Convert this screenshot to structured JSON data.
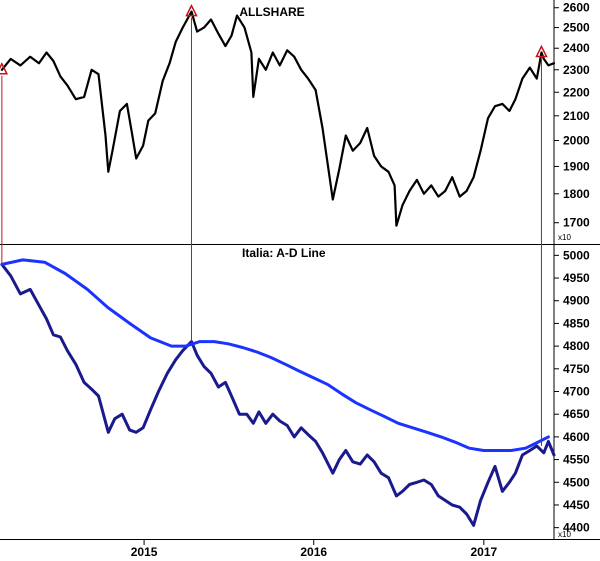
{
  "chart_data": [
    {
      "type": "line",
      "title": "ALLSHARE",
      "unit_label": "x10",
      "ylim": [
        1630,
        2640
      ],
      "yticks": [
        1700,
        1800,
        1900,
        2000,
        2100,
        2200,
        2300,
        2400,
        2500,
        2600
      ],
      "y_scale": "log",
      "series": [
        {
          "color": "#000000",
          "x": [
            "2014-03-01",
            "2014-03-20",
            "2014-04-10",
            "2014-05-01",
            "2014-05-20",
            "2014-06-05",
            "2014-06-20",
            "2014-07-05",
            "2014-07-20",
            "2014-08-07",
            "2014-08-25",
            "2014-09-10",
            "2014-09-25",
            "2014-10-10",
            "2014-10-16",
            "2014-10-25",
            "2014-11-10",
            "2014-11-25",
            "2014-12-05",
            "2014-12-15",
            "2014-12-30",
            "2015-01-10",
            "2015-01-25",
            "2015-02-10",
            "2015-02-25",
            "2015-03-10",
            "2015-03-25",
            "2015-04-13",
            "2015-04-25",
            "2015-05-10",
            "2015-05-25",
            "2015-06-10",
            "2015-06-25",
            "2015-07-08",
            "2015-07-20",
            "2015-08-05",
            "2015-08-20",
            "2015-08-24",
            "2015-09-05",
            "2015-09-20",
            "2015-10-05",
            "2015-10-20",
            "2015-11-05",
            "2015-11-20",
            "2015-12-05",
            "2015-12-20",
            "2016-01-05",
            "2016-01-20",
            "2016-02-11",
            "2016-02-25",
            "2016-03-10",
            "2016-03-25",
            "2016-04-10",
            "2016-04-25",
            "2016-05-10",
            "2016-05-25",
            "2016-06-10",
            "2016-06-23",
            "2016-06-27",
            "2016-07-10",
            "2016-07-25",
            "2016-08-10",
            "2016-08-25",
            "2016-09-10",
            "2016-09-25",
            "2016-10-10",
            "2016-10-25",
            "2016-11-10",
            "2016-11-25",
            "2016-12-10",
            "2016-12-25",
            "2017-01-10",
            "2017-01-25",
            "2017-02-10",
            "2017-02-25",
            "2017-03-10",
            "2017-03-25",
            "2017-04-10",
            "2017-04-25",
            "2017-05-05",
            "2017-05-10",
            "2017-05-20",
            "2017-06-01"
          ],
          "values": [
            2300,
            2350,
            2320,
            2360,
            2330,
            2380,
            2340,
            2270,
            2230,
            2170,
            2180,
            2300,
            2280,
            2020,
            1880,
            1960,
            2120,
            2150,
            2040,
            1930,
            1980,
            2080,
            2110,
            2250,
            2330,
            2430,
            2500,
            2580,
            2480,
            2500,
            2540,
            2470,
            2410,
            2460,
            2560,
            2500,
            2380,
            2180,
            2350,
            2300,
            2380,
            2320,
            2390,
            2360,
            2300,
            2260,
            2210,
            2050,
            1780,
            1890,
            2020,
            1960,
            1990,
            2050,
            1940,
            1900,
            1880,
            1830,
            1690,
            1760,
            1810,
            1850,
            1800,
            1830,
            1790,
            1810,
            1860,
            1790,
            1810,
            1860,
            1960,
            2090,
            2140,
            2150,
            2120,
            2170,
            2260,
            2310,
            2260,
            2380,
            2350,
            2320,
            2330
          ]
        }
      ]
    },
    {
      "type": "line",
      "title": "Italia: A-D Line",
      "unit_label": "x10",
      "ylim": [
        4375,
        5025
      ],
      "yticks": [
        4400,
        4450,
        4500,
        4550,
        4600,
        4650,
        4700,
        4750,
        4800,
        4850,
        4900,
        4950,
        5000
      ],
      "series": [
        {
          "color": "#1a1a8c",
          "x": [
            "2014-03-01",
            "2014-03-20",
            "2014-04-10",
            "2014-05-01",
            "2014-05-20",
            "2014-06-05",
            "2014-06-20",
            "2014-07-05",
            "2014-07-20",
            "2014-08-07",
            "2014-08-25",
            "2014-09-10",
            "2014-09-25",
            "2014-10-16",
            "2014-10-30",
            "2014-11-15",
            "2014-12-01",
            "2014-12-15",
            "2014-12-30",
            "2015-01-15",
            "2015-02-01",
            "2015-02-20",
            "2015-03-10",
            "2015-03-25",
            "2015-04-13",
            "2015-04-25",
            "2015-05-10",
            "2015-05-25",
            "2015-06-10",
            "2015-06-25",
            "2015-07-08",
            "2015-07-25",
            "2015-08-10",
            "2015-08-24",
            "2015-09-05",
            "2015-09-20",
            "2015-10-05",
            "2015-10-20",
            "2015-11-05",
            "2015-11-20",
            "2015-12-05",
            "2015-12-20",
            "2016-01-05",
            "2016-01-20",
            "2016-02-11",
            "2016-02-25",
            "2016-03-10",
            "2016-03-25",
            "2016-04-10",
            "2016-04-25",
            "2016-05-10",
            "2016-05-25",
            "2016-06-10",
            "2016-06-27",
            "2016-07-10",
            "2016-07-25",
            "2016-08-10",
            "2016-08-25",
            "2016-09-10",
            "2016-09-25",
            "2016-10-10",
            "2016-10-25",
            "2016-11-10",
            "2016-11-25",
            "2016-12-10",
            "2016-12-25",
            "2017-01-10",
            "2017-01-25",
            "2017-02-10",
            "2017-02-25",
            "2017-03-10",
            "2017-03-25",
            "2017-04-10",
            "2017-04-25",
            "2017-05-10",
            "2017-05-20",
            "2017-06-01"
          ],
          "values": [
            4980,
            4955,
            4915,
            4925,
            4890,
            4860,
            4825,
            4820,
            4790,
            4760,
            4720,
            4705,
            4690,
            4610,
            4640,
            4650,
            4615,
            4610,
            4620,
            4660,
            4700,
            4740,
            4770,
            4790,
            4810,
            4780,
            4755,
            4740,
            4710,
            4720,
            4690,
            4650,
            4650,
            4630,
            4655,
            4630,
            4650,
            4635,
            4625,
            4600,
            4620,
            4605,
            4590,
            4565,
            4520,
            4550,
            4570,
            4545,
            4540,
            4560,
            4545,
            4520,
            4510,
            4470,
            4480,
            4495,
            4500,
            4505,
            4495,
            4470,
            4460,
            4450,
            4445,
            4430,
            4405,
            4460,
            4500,
            4535,
            4480,
            4500,
            4520,
            4560,
            4570,
            4580,
            4565,
            4590,
            4560
          ]
        },
        {
          "color": "#1a33ff",
          "x": [
            "2014-03-01",
            "2014-04-15",
            "2014-06-01",
            "2014-07-15",
            "2014-09-01",
            "2014-10-15",
            "2014-12-01",
            "2015-01-15",
            "2015-03-01",
            "2015-04-01",
            "2015-05-01",
            "2015-06-01",
            "2015-07-01",
            "2015-08-01",
            "2015-09-01",
            "2015-10-01",
            "2015-11-01",
            "2015-12-01",
            "2016-01-01",
            "2016-02-01",
            "2016-03-01",
            "2016-04-01",
            "2016-05-01",
            "2016-06-01",
            "2016-07-01",
            "2016-08-01",
            "2016-09-01",
            "2016-10-01",
            "2016-11-01",
            "2016-12-01",
            "2017-01-01",
            "2017-02-01",
            "2017-03-01",
            "2017-04-01",
            "2017-05-01",
            "2017-05-20"
          ],
          "values": [
            4980,
            4990,
            4985,
            4960,
            4925,
            4885,
            4850,
            4818,
            4800,
            4800,
            4810,
            4810,
            4805,
            4797,
            4787,
            4775,
            4760,
            4745,
            4730,
            4715,
            4695,
            4675,
            4660,
            4645,
            4630,
            4620,
            4610,
            4600,
            4588,
            4575,
            4570,
            4570,
            4570,
            4575,
            4590,
            4600
          ]
        }
      ]
    }
  ],
  "x_axis": {
    "ticks": [
      {
        "label": "2015",
        "date": "2015-01-01"
      },
      {
        "label": "2016",
        "date": "2016-01-01"
      },
      {
        "label": "2017",
        "date": "2017-01-01"
      }
    ],
    "range": [
      "2014-02-25",
      "2017-06-01"
    ]
  },
  "annotations": {
    "color": "#cc1111",
    "markers": [
      {
        "date": "2014-03-01",
        "price": 2300,
        "ad": 4980
      },
      {
        "date": "2015-04-13",
        "price": 2580,
        "ad": 4810
      },
      {
        "date": "2017-05-05",
        "price": 2380,
        "ad": 4580
      }
    ]
  }
}
